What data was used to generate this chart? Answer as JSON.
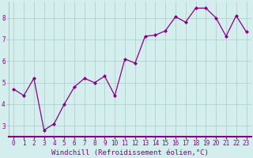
{
  "x": [
    0,
    1,
    2,
    3,
    4,
    5,
    6,
    7,
    8,
    9,
    10,
    11,
    12,
    13,
    14,
    15,
    16,
    17,
    18,
    19,
    20,
    21,
    22,
    23
  ],
  "y": [
    4.7,
    4.4,
    5.2,
    2.8,
    3.1,
    4.0,
    4.8,
    5.2,
    5.0,
    5.3,
    4.4,
    6.1,
    5.9,
    7.15,
    7.2,
    7.4,
    8.05,
    7.8,
    8.45,
    8.45,
    8.0,
    7.15,
    8.1,
    7.35
  ],
  "line_color": "#880088",
  "marker": "D",
  "markersize": 2.0,
  "linewidth": 0.9,
  "xlabel": "Windchill (Refroidissement éolien,°C)",
  "xlim": [
    -0.5,
    23.5
  ],
  "ylim": [
    2.5,
    8.75
  ],
  "yticks": [
    3,
    4,
    5,
    6,
    7,
    8
  ],
  "xticks": [
    0,
    1,
    2,
    3,
    4,
    5,
    6,
    7,
    8,
    9,
    10,
    11,
    12,
    13,
    14,
    15,
    16,
    17,
    18,
    19,
    20,
    21,
    22,
    23
  ],
  "background_color": "#d4eeee",
  "grid_color": "#aacccc",
  "tick_labelsize": 5.5,
  "xlabel_fontsize": 6.5,
  "text_color": "#880088"
}
